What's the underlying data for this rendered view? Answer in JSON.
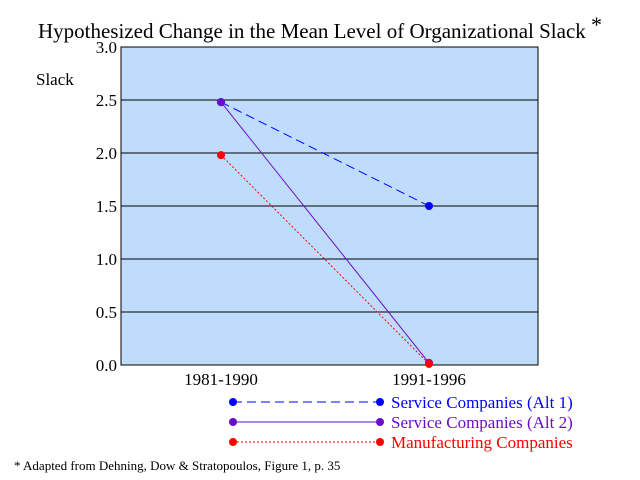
{
  "chart_data": {
    "type": "line",
    "title": "Hypothesized Change in the Mean Level of Organizational Slack",
    "title_mark": "*",
    "ylabel": "Slack",
    "xlabel": "",
    "categories": [
      "1981-1990",
      "1991-1996"
    ],
    "ylim": [
      0,
      3.0
    ],
    "yticks": [
      "0.0",
      "0.5",
      "1.0",
      "1.5",
      "2.0",
      "2.5",
      "3.0"
    ],
    "grid": true,
    "legend_position": "bottom-right",
    "plot_background": "#c0dcfc",
    "series": [
      {
        "name": "Service Companies (Alt 1)",
        "values": [
          2.48,
          1.5
        ],
        "color": "#0000ff",
        "line_style": "dashed"
      },
      {
        "name": "Service Companies (Alt 2)",
        "values": [
          2.48,
          0.02
        ],
        "color": "#6a0dc8",
        "line_style": "solid"
      },
      {
        "name": "Manufacturing Companies",
        "values": [
          1.98,
          0.01
        ],
        "color": "#ff0000",
        "line_style": "dotted"
      }
    ],
    "footnote": "* Adapted from Dehning, Dow & Stratopoulos, Figure 1, p. 35"
  }
}
